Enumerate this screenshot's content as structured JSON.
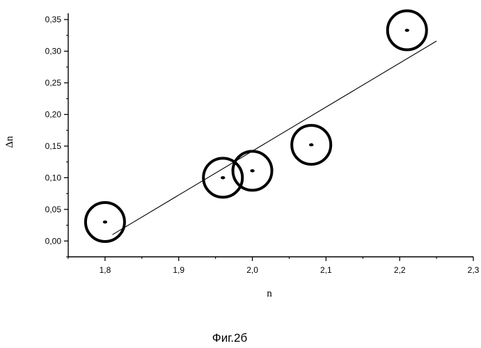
{
  "chart_data": {
    "type": "scatter",
    "title": "",
    "xlabel": "n",
    "ylabel": "Δn",
    "caption": "Фиг.2б",
    "xlim": [
      1.75,
      2.3
    ],
    "ylim": [
      -0.025,
      0.36
    ],
    "x_ticks": [
      {
        "value": 1.8,
        "label": "1,8"
      },
      {
        "value": 1.9,
        "label": "1,9"
      },
      {
        "value": 2.0,
        "label": "2,0"
      },
      {
        "value": 2.1,
        "label": "2,1"
      },
      {
        "value": 2.2,
        "label": "2,2"
      },
      {
        "value": 2.3,
        "label": "2,3"
      }
    ],
    "y_ticks": [
      {
        "value": 0.0,
        "label": "0,00"
      },
      {
        "value": 0.05,
        "label": "0,05"
      },
      {
        "value": 0.1,
        "label": "0,10"
      },
      {
        "value": 0.15,
        "label": "0,15"
      },
      {
        "value": 0.2,
        "label": "0,20"
      },
      {
        "value": 0.25,
        "label": "0,25"
      },
      {
        "value": 0.3,
        "label": "0,30"
      },
      {
        "value": 0.35,
        "label": "0,35"
      }
    ],
    "grid": false,
    "series": [
      {
        "points": [
          {
            "x": 1.8,
            "y": 0.03
          },
          {
            "x": 1.96,
            "y": 0.1
          },
          {
            "x": 2.0,
            "y": 0.111
          },
          {
            "x": 2.08,
            "y": 0.152
          },
          {
            "x": 2.21,
            "y": 0.333
          }
        ]
      }
    ],
    "fit_line": {
      "x": [
        1.81,
        2.25
      ],
      "y": [
        0.01,
        0.316
      ]
    }
  }
}
